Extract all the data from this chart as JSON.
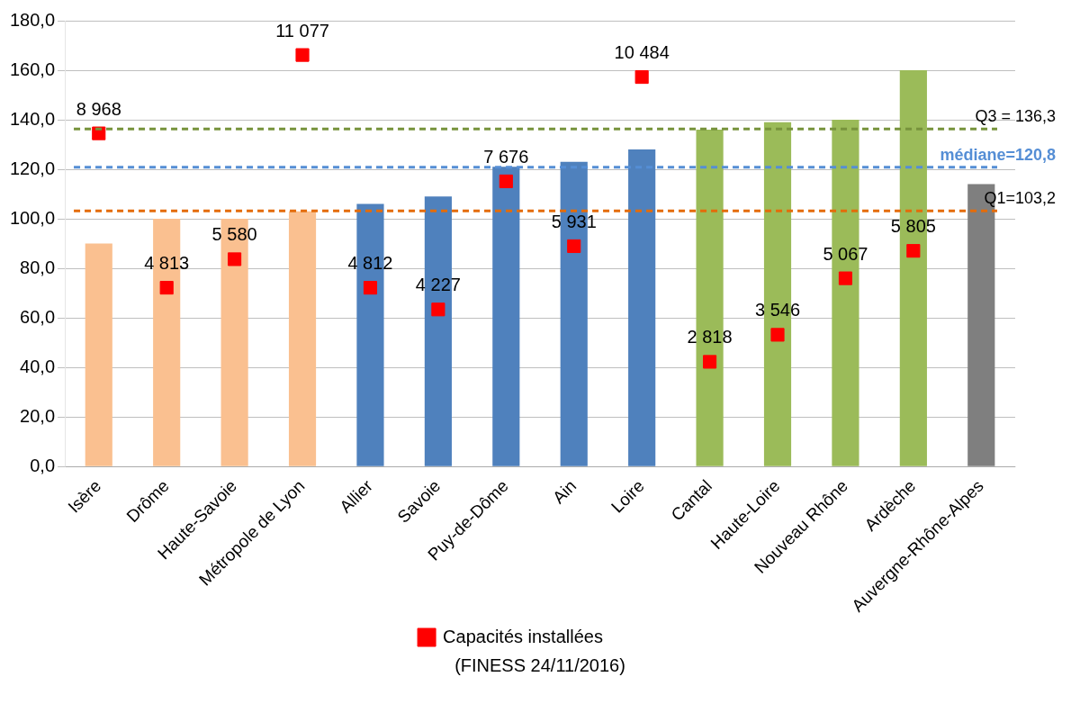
{
  "chart_data": {
    "type": "bar",
    "categories": [
      "Isère",
      "Drôme",
      "Haute-Savoie",
      "Métropole de Lyon",
      "Allier",
      "Savoie",
      "Puy-de-Dôme",
      "Ain",
      "Loire",
      "Cantal",
      "Haute-Loire",
      "Nouveau Rhône",
      "Ardèche",
      "Auvergne-Rhône-Alpes"
    ],
    "series": [
      {
        "values": [
          90,
          100,
          100,
          103,
          106,
          109,
          121,
          123,
          128,
          136,
          139,
          140,
          160,
          114
        ],
        "colors": [
          "#fac090",
          "#fac090",
          "#fac090",
          "#fac090",
          "#4f81bd",
          "#4f81bd",
          "#4f81bd",
          "#4f81bd",
          "#4f81bd",
          "#9bbb59",
          "#9bbb59",
          "#9bbb59",
          "#9bbb59",
          "#7f7f7f"
        ]
      },
      {
        "type": "scatter",
        "name": "Capacités installées",
        "color": "#ff0000",
        "axis": "y2",
        "marker": "square",
        "values": [
          8968,
          4813,
          5580,
          11077,
          4812,
          4227,
          7676,
          5931,
          10484,
          2818,
          3546,
          5067,
          5805,
          null
        ],
        "value_labels": [
          "8 968",
          "4 813",
          "5 580",
          "11 077",
          "4 812",
          "4 227",
          "7 676",
          "5 931",
          "10 484",
          "2 818",
          "3 546",
          "5 067",
          "5 805",
          null
        ]
      }
    ],
    "ylim": [
      0,
      180
    ],
    "yticks": [
      {
        "value": 0,
        "label": "0,0"
      },
      {
        "value": 20,
        "label": "20,0"
      },
      {
        "value": 40,
        "label": "40,0"
      },
      {
        "value": 60,
        "label": "60,0"
      },
      {
        "value": 80,
        "label": "80,0"
      },
      {
        "value": 100,
        "label": "100,0"
      },
      {
        "value": 120,
        "label": "120,0"
      },
      {
        "value": 140,
        "label": "140,0"
      },
      {
        "value": 160,
        "label": "160,0"
      },
      {
        "value": 180,
        "label": "180,0"
      }
    ],
    "y2lim": [
      0,
      12000
    ],
    "grid": "y",
    "legend": "bottom",
    "ref_lines": [
      {
        "axis": "y",
        "value": 136.3,
        "label": "Q3 = 136,3",
        "color": "#77933c",
        "line_style": "dashed"
      },
      {
        "axis": "y",
        "value": 120.8,
        "label": "médiane=120,8",
        "color": "#558ed5",
        "line_style": "dashed"
      },
      {
        "axis": "y",
        "value": 103.2,
        "label": "Q1=103,2",
        "color": "#e46c0a",
        "line_style": "dashed"
      }
    ],
    "annotations": [
      "(FINESS 24/11/2016)"
    ]
  }
}
